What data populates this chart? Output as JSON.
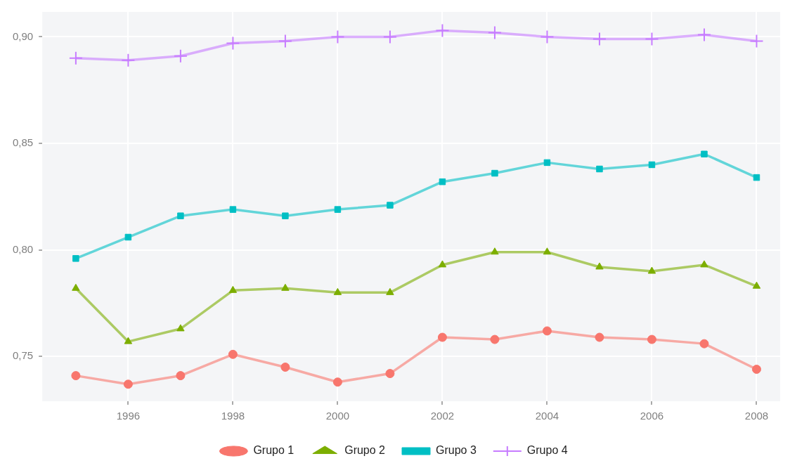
{
  "chart_data": {
    "type": "line",
    "x": [
      1995,
      1996,
      1997,
      1998,
      1999,
      2000,
      2001,
      2002,
      2003,
      2004,
      2005,
      2006,
      2007,
      2008
    ],
    "series": [
      {
        "name": "Grupo 1",
        "color": "#f8766d",
        "marker": "circle",
        "values": [
          0.741,
          0.737,
          0.741,
          0.751,
          0.745,
          0.738,
          0.742,
          0.759,
          0.758,
          0.762,
          0.759,
          0.758,
          0.756,
          0.744
        ]
      },
      {
        "name": "Grupo 2",
        "color": "#7cae00",
        "marker": "triangle",
        "values": [
          0.782,
          0.757,
          0.763,
          0.781,
          0.782,
          0.78,
          0.78,
          0.793,
          0.799,
          0.799,
          0.792,
          0.79,
          0.793,
          0.783
        ]
      },
      {
        "name": "Grupo 3",
        "color": "#00bfc4",
        "marker": "square",
        "values": [
          0.796,
          0.806,
          0.816,
          0.819,
          0.816,
          0.819,
          0.821,
          0.832,
          0.836,
          0.841,
          0.838,
          0.84,
          0.845,
          0.834
        ]
      },
      {
        "name": "Grupo 4",
        "color": "#c77cff",
        "marker": "cross",
        "values": [
          0.89,
          0.889,
          0.891,
          0.897,
          0.898,
          0.9,
          0.9,
          0.903,
          0.902,
          0.9,
          0.899,
          0.899,
          0.901,
          0.898
        ]
      }
    ],
    "xlim": [
      1994.36,
      2008.45
    ],
    "ylim": [
      0.729,
      0.9117
    ],
    "xticks": [
      1996,
      1998,
      2000,
      2002,
      2004,
      2006,
      2008
    ],
    "yticks": [
      {
        "value": 0.75,
        "label": "0,75"
      },
      {
        "value": 0.8,
        "label": "0,80"
      },
      {
        "value": 0.85,
        "label": "0,85"
      },
      {
        "value": 0.9,
        "label": "0,90"
      }
    ],
    "grid": true,
    "legend": "bottom",
    "line_style": "solid"
  }
}
